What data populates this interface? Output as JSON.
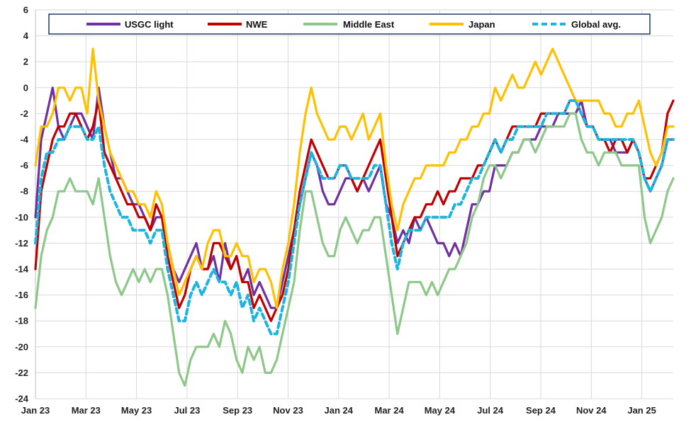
{
  "chart_data": {
    "type": "line",
    "title": "",
    "xlabel": "",
    "ylabel": "",
    "ylim": [
      -24,
      6
    ],
    "yticks": [
      6,
      4,
      2,
      0,
      -2,
      -4,
      -6,
      -8,
      -10,
      -12,
      -14,
      -16,
      -18,
      -20,
      -22,
      -24
    ],
    "xticks": [
      "Jan 23",
      "Mar 23",
      "May 23",
      "Jul 23",
      "Sep 23",
      "Nov 23",
      "Jan 24",
      "Mar 24",
      "May 24",
      "Jul 24",
      "Sep 24",
      "Nov 24",
      "Jan 25"
    ],
    "grid": true,
    "legend_position": "top",
    "x_unit": "weeks since Jan 2023",
    "series": [
      {
        "name": "USGC light",
        "color": "#7030A0",
        "style": "solid",
        "x": [
          0,
          1,
          2,
          3,
          4,
          5,
          6,
          7,
          8,
          9,
          10,
          11,
          12,
          13,
          14,
          15,
          16,
          17,
          18,
          19,
          20,
          21,
          22,
          23,
          24,
          25,
          26,
          27,
          28,
          29,
          30,
          31,
          32,
          33,
          34,
          35,
          36,
          37,
          38,
          39,
          40,
          41,
          42,
          43,
          44,
          45,
          46,
          47,
          48,
          49,
          50,
          51,
          52,
          53,
          54,
          55,
          56,
          57,
          58,
          59,
          60,
          61,
          62,
          63,
          64,
          65,
          66,
          67,
          68,
          69,
          70,
          71,
          72,
          73,
          74,
          75,
          76,
          77,
          78,
          79,
          80,
          81,
          82,
          83,
          84,
          85,
          86,
          87,
          88,
          89,
          90,
          91,
          92,
          93,
          94,
          95,
          96,
          97,
          98,
          99,
          100,
          101,
          102,
          103,
          104,
          105,
          106,
          107,
          108,
          109,
          110,
          111
        ],
        "values": [
          -10,
          -4,
          -2,
          0,
          -3,
          -4,
          -3,
          -2,
          -2,
          -3,
          -4,
          0,
          -3,
          -5,
          -7,
          -7,
          -8,
          -9,
          -9,
          -10,
          -11,
          -10,
          -10,
          -12,
          -14,
          -15,
          -14,
          -13,
          -12,
          -14,
          -14,
          -13,
          -15,
          -12,
          -14,
          -13,
          -15,
          -14,
          -16,
          -15,
          -16,
          -17,
          -17,
          -15,
          -13,
          -11,
          -9,
          -7,
          -5,
          -6,
          -8,
          -9,
          -9,
          -8,
          -7,
          -7,
          -8,
          -7,
          -8,
          -7,
          -6,
          -9,
          -10,
          -12,
          -11,
          -12,
          -10,
          -11,
          -10,
          -11,
          -12,
          -12,
          -13,
          -12,
          -13,
          -11,
          -9,
          -9,
          -8,
          -8,
          -6,
          -6,
          -6,
          -5,
          -5,
          -4,
          -4,
          -4,
          -3,
          -3,
          -3,
          -2,
          -2,
          -2,
          -2,
          -1,
          -3,
          -3,
          -4,
          -4,
          -4,
          -5,
          -5,
          -5,
          -4,
          -5,
          -7,
          -8,
          -7,
          -6,
          -4,
          -4
        ]
      },
      {
        "name": "NWE",
        "color": "#C00000",
        "style": "solid",
        "x": [
          0,
          1,
          2,
          3,
          4,
          5,
          6,
          7,
          8,
          9,
          10,
          11,
          12,
          13,
          14,
          15,
          16,
          17,
          18,
          19,
          20,
          21,
          22,
          23,
          24,
          25,
          26,
          27,
          28,
          29,
          30,
          31,
          32,
          33,
          34,
          35,
          36,
          37,
          38,
          39,
          40,
          41,
          42,
          43,
          44,
          45,
          46,
          47,
          48,
          49,
          50,
          51,
          52,
          53,
          54,
          55,
          56,
          57,
          58,
          59,
          60,
          61,
          62,
          63,
          64,
          65,
          66,
          67,
          68,
          69,
          70,
          71,
          72,
          73,
          74,
          75,
          76,
          77,
          78,
          79,
          80,
          81,
          82,
          83,
          84,
          85,
          86,
          87,
          88,
          89,
          90,
          91,
          92,
          93,
          94,
          95,
          96,
          97,
          98,
          99,
          100,
          101,
          102,
          103,
          104,
          105,
          106,
          107,
          108,
          109,
          110,
          111
        ],
        "values": [
          -14,
          -8,
          -6,
          -4,
          -3,
          -3,
          -2,
          -2,
          -3,
          -4,
          -3,
          -1,
          -5,
          -6,
          -7,
          -8,
          -9,
          -9,
          -10,
          -10,
          -11,
          -9,
          -10,
          -13,
          -15,
          -17,
          -16,
          -14,
          -13,
          -14,
          -14,
          -12,
          -12,
          -13,
          -14,
          -13,
          -15,
          -15,
          -17,
          -16,
          -17,
          -18,
          -17,
          -16,
          -14,
          -11,
          -8,
          -6,
          -4,
          -5,
          -6,
          -7,
          -7,
          -6,
          -6,
          -7,
          -8,
          -7,
          -6,
          -5,
          -4,
          -7,
          -10,
          -13,
          -12,
          -11,
          -10,
          -10,
          -9,
          -9,
          -8,
          -9,
          -8,
          -8,
          -7,
          -7,
          -7,
          -6,
          -6,
          -5,
          -4,
          -5,
          -4,
          -3,
          -3,
          -3,
          -3,
          -3,
          -2,
          -2,
          -2,
          -2,
          -2,
          -1,
          -1,
          -2,
          -3,
          -3,
          -4,
          -4,
          -5,
          -4,
          -4,
          -5,
          -4,
          -5,
          -7,
          -7,
          -6,
          -5,
          -2,
          -1
        ]
      },
      {
        "name": "Middle East",
        "color": "#8DC88A",
        "style": "solid",
        "x": [
          0,
          1,
          2,
          3,
          4,
          5,
          6,
          7,
          8,
          9,
          10,
          11,
          12,
          13,
          14,
          15,
          16,
          17,
          18,
          19,
          20,
          21,
          22,
          23,
          24,
          25,
          26,
          27,
          28,
          29,
          30,
          31,
          32,
          33,
          34,
          35,
          36,
          37,
          38,
          39,
          40,
          41,
          42,
          43,
          44,
          45,
          46,
          47,
          48,
          49,
          50,
          51,
          52,
          53,
          54,
          55,
          56,
          57,
          58,
          59,
          60,
          61,
          62,
          63,
          64,
          65,
          66,
          67,
          68,
          69,
          70,
          71,
          72,
          73,
          74,
          75,
          76,
          77,
          78,
          79,
          80,
          81,
          82,
          83,
          84,
          85,
          86,
          87,
          88,
          89,
          90,
          91,
          92,
          93,
          94,
          95,
          96,
          97,
          98,
          99,
          100,
          101,
          102,
          103,
          104,
          105,
          106,
          107,
          108,
          109,
          110,
          111
        ],
        "values": [
          -17,
          -13,
          -11,
          -10,
          -8,
          -8,
          -7,
          -8,
          -8,
          -8,
          -9,
          -7,
          -10,
          -13,
          -15,
          -16,
          -15,
          -14,
          -15,
          -14,
          -15,
          -14,
          -14,
          -16,
          -19,
          -22,
          -23,
          -21,
          -20,
          -20,
          -20,
          -19,
          -20,
          -18,
          -19,
          -21,
          -22,
          -20,
          -21,
          -20,
          -22,
          -22,
          -21,
          -19,
          -17,
          -15,
          -11,
          -8,
          -8,
          -10,
          -12,
          -13,
          -13,
          -11,
          -10,
          -11,
          -12,
          -11,
          -11,
          -10,
          -10,
          -13,
          -16,
          -19,
          -17,
          -15,
          -15,
          -15,
          -16,
          -15,
          -16,
          -15,
          -14,
          -14,
          -13,
          -12,
          -10,
          -9,
          -7,
          -6,
          -6,
          -7,
          -6,
          -5,
          -5,
          -4,
          -4,
          -5,
          -4,
          -3,
          -3,
          -3,
          -3,
          -2,
          -2,
          -4,
          -5,
          -5,
          -6,
          -5,
          -5,
          -5,
          -6,
          -6,
          -6,
          -6,
          -10,
          -12,
          -11,
          -10,
          -8,
          -7
        ]
      },
      {
        "name": "Japan",
        "color": "#FFC000",
        "style": "solid",
        "x": [
          0,
          1,
          2,
          3,
          4,
          5,
          6,
          7,
          8,
          9,
          10,
          11,
          12,
          13,
          14,
          15,
          16,
          17,
          18,
          19,
          20,
          21,
          22,
          23,
          24,
          25,
          26,
          27,
          28,
          29,
          30,
          31,
          32,
          33,
          34,
          35,
          36,
          37,
          38,
          39,
          40,
          41,
          42,
          43,
          44,
          45,
          46,
          47,
          48,
          49,
          50,
          51,
          52,
          53,
          54,
          55,
          56,
          57,
          58,
          59,
          60,
          61,
          62,
          63,
          64,
          65,
          66,
          67,
          68,
          69,
          70,
          71,
          72,
          73,
          74,
          75,
          76,
          77,
          78,
          79,
          80,
          81,
          82,
          83,
          84,
          85,
          86,
          87,
          88,
          89,
          90,
          91,
          92,
          93,
          94,
          95,
          96,
          97,
          98,
          99,
          100,
          101,
          102,
          103,
          104,
          105,
          106,
          107,
          108,
          109,
          110,
          111
        ],
        "values": [
          -6,
          -3,
          -3,
          -2,
          0,
          0,
          -1,
          0,
          0,
          -2,
          3,
          -1,
          -3,
          -5,
          -6,
          -7,
          -8,
          -8,
          -9,
          -9,
          -10,
          -8,
          -9,
          -12,
          -14,
          -16,
          -15,
          -14,
          -13,
          -14,
          -12,
          -11,
          -11,
          -13,
          -13,
          -12,
          -13,
          -13,
          -15,
          -14,
          -14,
          -15,
          -17,
          -14,
          -12,
          -9,
          -5,
          -2,
          0,
          -2,
          -3,
          -4,
          -4,
          -3,
          -3,
          -4,
          -3,
          -2,
          -4,
          -3,
          -2,
          -6,
          -9,
          -11,
          -9,
          -8,
          -7,
          -7,
          -6,
          -6,
          -6,
          -6,
          -5,
          -5,
          -4,
          -4,
          -3,
          -3,
          -2,
          -2,
          0,
          -1,
          0,
          1,
          0,
          0,
          1,
          2,
          1,
          2,
          3,
          2,
          1,
          0,
          -1,
          -1,
          -1,
          -1,
          -1,
          -2,
          -2,
          -3,
          -3,
          -2,
          -2,
          -1,
          -3,
          -5,
          -6,
          -5,
          -3,
          -3
        ]
      },
      {
        "name": "Global avg.",
        "color": "#1CB5E0",
        "style": "dashed",
        "x": [
          0,
          1,
          2,
          3,
          4,
          5,
          6,
          7,
          8,
          9,
          10,
          11,
          12,
          13,
          14,
          15,
          16,
          17,
          18,
          19,
          20,
          21,
          22,
          23,
          24,
          25,
          26,
          27,
          28,
          29,
          30,
          31,
          32,
          33,
          34,
          35,
          36,
          37,
          38,
          39,
          40,
          41,
          42,
          43,
          44,
          45,
          46,
          47,
          48,
          49,
          50,
          51,
          52,
          53,
          54,
          55,
          56,
          57,
          58,
          59,
          60,
          61,
          62,
          63,
          64,
          65,
          66,
          67,
          68,
          69,
          70,
          71,
          72,
          73,
          74,
          75,
          76,
          77,
          78,
          79,
          80,
          81,
          82,
          83,
          84,
          85,
          86,
          87,
          88,
          89,
          90,
          91,
          92,
          93,
          94,
          95,
          96,
          97,
          98,
          99,
          100,
          101,
          102,
          103,
          104,
          105,
          106,
          107,
          108,
          109,
          110,
          111
        ],
        "values": [
          -12,
          -7,
          -5,
          -5,
          -4,
          -4,
          -3,
          -3,
          -3,
          -4,
          -4,
          -3,
          -6,
          -8,
          -9,
          -10,
          -10,
          -11,
          -11,
          -11,
          -12,
          -11,
          -11,
          -14,
          -16,
          -18,
          -18,
          -16,
          -15,
          -16,
          -15,
          -14,
          -15,
          -15,
          -16,
          -15,
          -17,
          -16,
          -18,
          -17,
          -18,
          -19,
          -19,
          -17,
          -15,
          -12,
          -9,
          -7,
          -5,
          -6,
          -7,
          -7,
          -7,
          -6,
          -6,
          -7,
          -7,
          -7,
          -7,
          -6,
          -6,
          -9,
          -12,
          -14,
          -12,
          -11,
          -11,
          -11,
          -10,
          -10,
          -10,
          -10,
          -10,
          -9,
          -9,
          -8,
          -7,
          -7,
          -6,
          -5,
          -4,
          -5,
          -4,
          -4,
          -3,
          -3,
          -3,
          -3,
          -3,
          -2,
          -2,
          -2,
          -2,
          -1,
          -1,
          -2,
          -3,
          -3,
          -4,
          -4,
          -4,
          -4,
          -4,
          -4,
          -4,
          -5,
          -7,
          -8,
          -7,
          -6,
          -4,
          -4
        ]
      }
    ]
  }
}
